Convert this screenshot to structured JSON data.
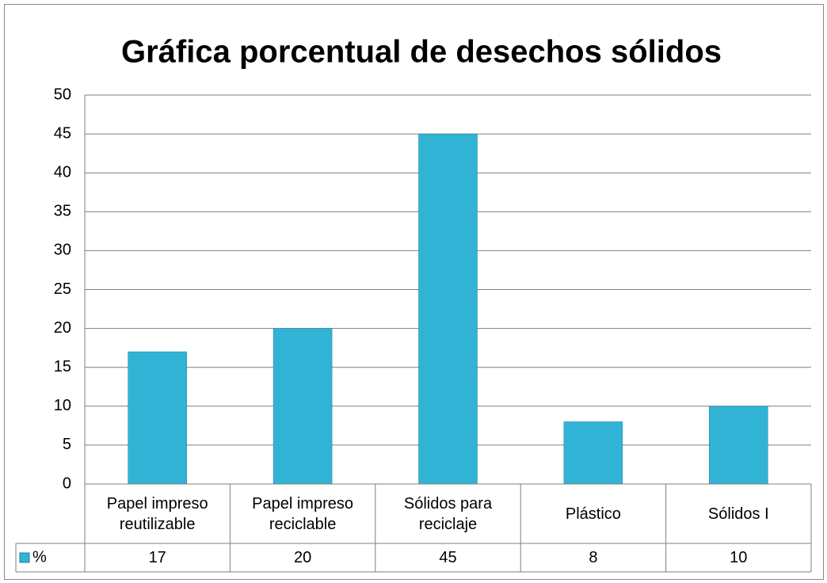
{
  "chart_data": {
    "type": "bar",
    "title": "Gráfica porcentual de desechos sólidos",
    "categories": [
      "Papel impreso reutilizable",
      "Papel impreso reciclable",
      "Sólidos para reciclaje",
      "Plástico",
      "Sólidos I"
    ],
    "series": [
      {
        "name": "%",
        "color": "#31b3d6",
        "values": [
          17,
          20,
          45,
          8,
          10
        ]
      }
    ],
    "ylim": [
      0,
      50
    ],
    "yticks": [
      0,
      5,
      10,
      15,
      20,
      25,
      30,
      35,
      40,
      45,
      50
    ],
    "grid": true,
    "data_table": true
  }
}
